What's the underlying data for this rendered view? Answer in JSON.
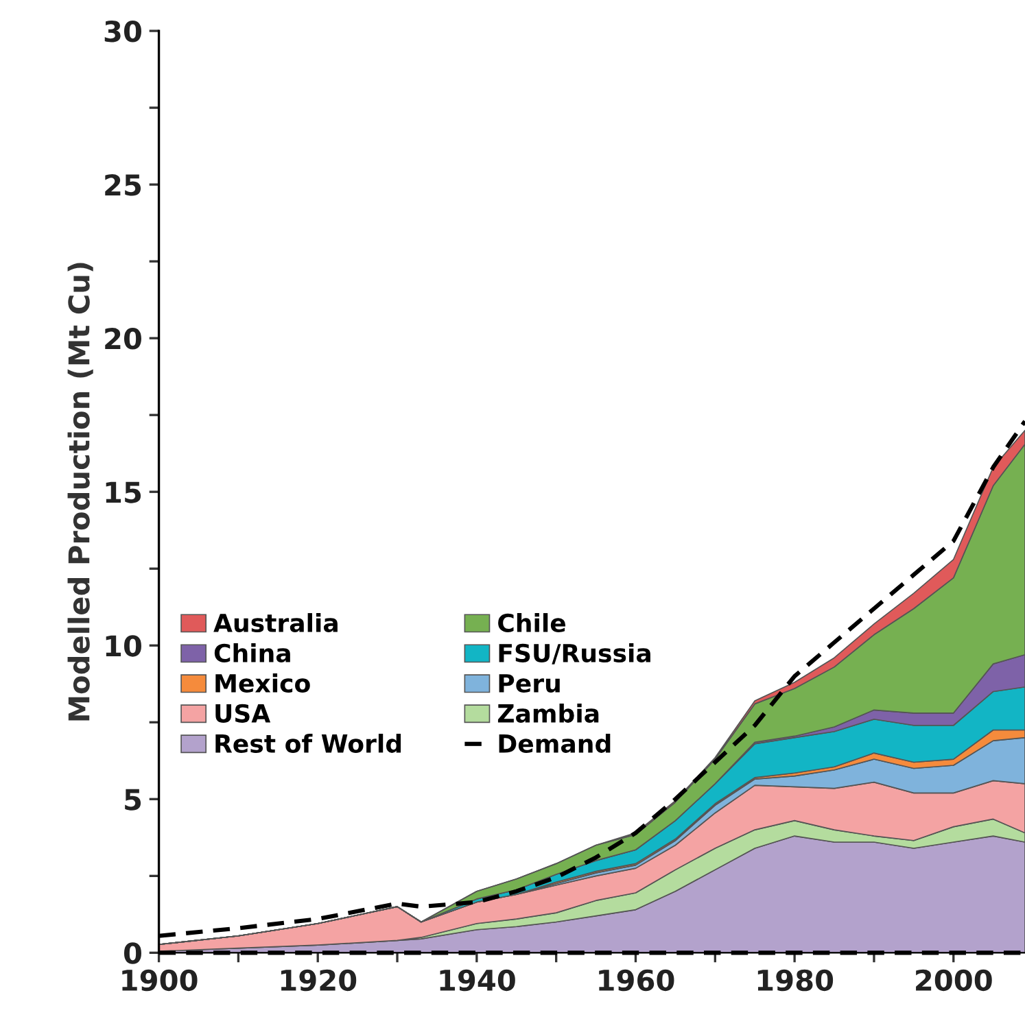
{
  "chart_data": {
    "type": "area",
    "stacked": true,
    "ylabel": "Modelled Production (Mt Cu)",
    "x": [
      1900,
      1910,
      1920,
      1930,
      1933,
      1940,
      1945,
      1950,
      1955,
      1960,
      1965,
      1970,
      1975,
      1980,
      1985,
      1990,
      1995,
      2000,
      2005,
      2009
    ],
    "xlim": [
      1900,
      2009
    ],
    "xticks": [
      1900,
      {
        "value": 1910,
        "label": null
      },
      1920,
      {
        "value": 1930,
        "label": null
      },
      1940,
      {
        "value": 1950,
        "label": null
      },
      1960,
      {
        "value": 1970,
        "label": null
      },
      1980,
      {
        "value": 1990,
        "label": null
      },
      2000
    ],
    "ylim": [
      0,
      30
    ],
    "yticks": [
      0,
      {
        "value": 2.5,
        "label": null
      },
      5,
      {
        "value": 7.5,
        "label": null
      },
      10,
      {
        "value": 12.5,
        "label": null
      },
      15,
      {
        "value": 17.5,
        "label": null
      },
      20,
      {
        "value": 22.5,
        "label": null
      },
      25,
      {
        "value": 27.5,
        "label": null
      },
      30
    ],
    "series": [
      {
        "name": "Rest of World",
        "color": "#b3a2cc",
        "values": [
          0.05,
          0.15,
          0.25,
          0.4,
          0.45,
          0.75,
          0.85,
          1.0,
          1.2,
          1.4,
          2.0,
          2.7,
          3.4,
          3.8,
          3.6,
          3.6,
          3.4,
          3.6,
          3.8,
          3.6
        ]
      },
      {
        "name": "Zambia",
        "color": "#b4dc9e",
        "values": [
          0,
          0,
          0,
          0,
          0.05,
          0.2,
          0.25,
          0.3,
          0.5,
          0.55,
          0.7,
          0.7,
          0.6,
          0.5,
          0.4,
          0.2,
          0.25,
          0.5,
          0.55,
          0.3
        ]
      },
      {
        "name": "USA",
        "color": "#f4a3a3",
        "values": [
          0.22,
          0.4,
          0.7,
          1.1,
          0.5,
          0.7,
          0.8,
          0.9,
          0.8,
          0.8,
          0.8,
          1.15,
          1.45,
          1.1,
          1.35,
          1.75,
          1.55,
          1.1,
          1.25,
          1.6
        ]
      },
      {
        "name": "Peru",
        "color": "#7fb3dc",
        "values": [
          0,
          0,
          0,
          0,
          0,
          0,
          0,
          0.05,
          0.1,
          0.1,
          0.15,
          0.25,
          0.2,
          0.35,
          0.6,
          0.75,
          0.8,
          0.9,
          1.3,
          1.5
        ]
      },
      {
        "name": "Mexico",
        "color": "#f58b3c",
        "values": [
          0,
          0,
          0,
          0,
          0,
          0,
          0,
          0.05,
          0.05,
          0.05,
          0.05,
          0.05,
          0.05,
          0.1,
          0.1,
          0.2,
          0.2,
          0.2,
          0.35,
          0.25
        ]
      },
      {
        "name": "FSU/Russia",
        "color": "#12b5c5",
        "values": [
          0,
          0,
          0,
          0,
          0,
          0.1,
          0.15,
          0.25,
          0.35,
          0.45,
          0.6,
          0.65,
          1.1,
          1.15,
          1.15,
          1.1,
          1.2,
          1.1,
          1.25,
          1.4
        ]
      },
      {
        "name": "China",
        "color": "#7e62a8",
        "values": [
          0,
          0,
          0,
          0,
          0,
          0,
          0,
          0,
          0,
          0,
          0,
          0,
          0.05,
          0.05,
          0.15,
          0.3,
          0.4,
          0.4,
          0.9,
          1.05
        ]
      },
      {
        "name": "Chile",
        "color": "#76b051",
        "values": [
          0,
          0,
          0,
          0,
          0,
          0.25,
          0.35,
          0.35,
          0.5,
          0.5,
          0.6,
          0.8,
          1.25,
          1.55,
          1.95,
          2.45,
          3.4,
          4.4,
          5.8,
          6.85
        ]
      },
      {
        "name": "Australia",
        "color": "#e05a5a",
        "values": [
          0,
          0,
          0,
          0,
          0,
          0,
          0,
          0,
          0,
          0.05,
          0.05,
          0.05,
          0.1,
          0.2,
          0.3,
          0.35,
          0.5,
          0.6,
          0.6,
          0.45
        ]
      },
      {
        "name": "Demand",
        "type": "line",
        "line_style": "dashed",
        "color": "#000000",
        "values": [
          0.55,
          0.8,
          1.1,
          1.6,
          1.5,
          1.65,
          2.0,
          2.45,
          3.1,
          3.9,
          5.0,
          6.2,
          7.4,
          9.0,
          10.1,
          11.2,
          12.3,
          13.4,
          15.8,
          17.3
        ]
      }
    ],
    "ref_lines": [
      {
        "axis": "y",
        "value": 0,
        "color": "#000000",
        "line_style": "dashed"
      }
    ],
    "legend": "center left",
    "grid": false
  }
}
